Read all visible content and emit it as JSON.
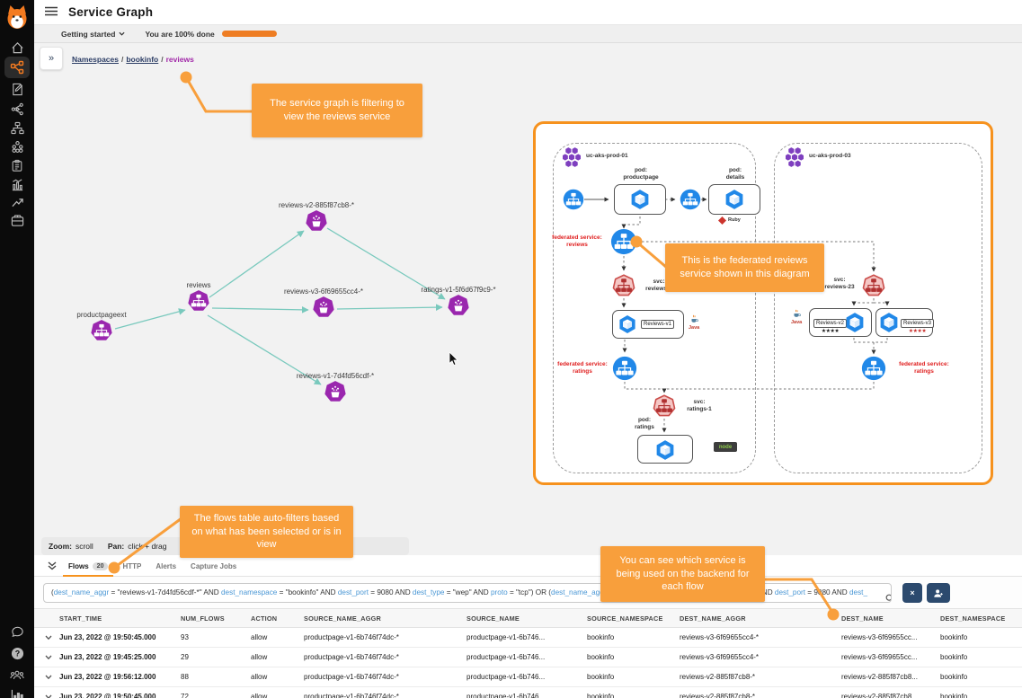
{
  "colors": {
    "accent_orange": "#F6921E",
    "callout_orange": "#F89F3C",
    "node_purple": "#9A27AE",
    "edge_teal": "#79C9BD",
    "diagram_blue": "#2188E8",
    "navy_button": "#2C4A6E",
    "federated_red": "#E02020"
  },
  "app": {
    "title": "Service Graph"
  },
  "onboarding": {
    "menu_label": "Getting started",
    "progress_label": "You are 100% done"
  },
  "breadcrumb": {
    "root": "Namespaces",
    "namespace": "bookinfo",
    "service": "reviews",
    "separator": "/"
  },
  "callouts": {
    "filter": "The service graph is filtering to view the reviews service",
    "federated": "This is the federated reviews service shown in this diagram",
    "flows": "The flows table auto-filters based on what has been selected or is in view",
    "backend": "You can see which service is being used on the backend for each flow"
  },
  "graph": {
    "nodes": [
      {
        "label": "productpageext",
        "kind": "service"
      },
      {
        "label": "reviews",
        "kind": "service"
      },
      {
        "label": "reviews-v2-885f87cb8-*",
        "kind": "replicaset"
      },
      {
        "label": "reviews-v3-6f69655cc4-*",
        "kind": "replicaset"
      },
      {
        "label": "ratings-v1-5f6d67f9c9-*",
        "kind": "replicaset"
      },
      {
        "label": "reviews-v1-7d4fd56cdf-*",
        "kind": "replicaset"
      }
    ],
    "help": {
      "zoom_key": "Zoom:",
      "zoom_val": "scroll",
      "pan_key": "Pan:",
      "pan_val": "click + drag",
      "expand_key": "Expand"
    }
  },
  "diagram": {
    "clusters": [
      {
        "name": "uc-aks-prod-01"
      },
      {
        "name": "uc-aks-prod-03"
      }
    ],
    "labels": {
      "pod_productpage": "pod:\nproductpage",
      "pod_details": "pod:\ndetails",
      "ruby": "Ruby",
      "fed_reviews": "federated service:\nreviews",
      "svc_reviews1": "svc:\nreviews-1",
      "reviews_v1": "Reviews-v1",
      "java": "Java",
      "fed_ratings": "federated service:\nratings",
      "svc_ratings1": "svc:\nratings-1",
      "pod_ratings": "pod:\nratings",
      "node": "node",
      "svc_reviews23": "svc:\nreviews-23",
      "reviews_v2": "Reviews-v2",
      "reviews_v3": "Reviews-v3",
      "stars": "★★★★"
    }
  },
  "flows_panel": {
    "tabs": [
      {
        "label": "Flows",
        "badge": "20",
        "active": true
      },
      {
        "label": "HTTP",
        "active": false
      },
      {
        "label": "Alerts",
        "active": false
      },
      {
        "label": "Capture Jobs",
        "active": false
      }
    ],
    "filter": {
      "segments_left": [
        {
          "type": "text",
          "text": "("
        },
        {
          "type": "key",
          "text": "dest_name_aggr"
        },
        {
          "type": "text",
          "text": " = \"reviews-v1-7d4fd56cdf-*\" AND "
        },
        {
          "type": "key",
          "text": "dest_namespace"
        },
        {
          "type": "text",
          "text": " = \"bookinfo\" AND "
        },
        {
          "type": "key",
          "text": "dest_port"
        },
        {
          "type": "text",
          "text": " = 9080 AND "
        },
        {
          "type": "key",
          "text": "dest_type"
        },
        {
          "type": "text",
          "text": " = \"wep\" AND "
        },
        {
          "type": "key",
          "text": "proto"
        },
        {
          "type": "text",
          "text": " = \"tcp\") OR ("
        },
        {
          "type": "key",
          "text": "dest_name_aggr"
        },
        {
          "type": "text",
          "text": " = \"r"
        }
      ],
      "segments_right": [
        {
          "type": "text",
          "text": "info\" AND "
        },
        {
          "type": "key",
          "text": "dest_port"
        },
        {
          "type": "text",
          "text": " = 9080 AND "
        },
        {
          "type": "key",
          "text": "dest_"
        }
      ]
    },
    "table": {
      "columns": [
        "START_TIME",
        "NUM_FLOWS",
        "ACTION",
        "SOURCE_NAME_AGGR",
        "SOURCE_NAME",
        "SOURCE_NAMESPACE",
        "DEST_NAME_AGGR",
        "DEST_NAME",
        "DEST_NAMESPACE"
      ],
      "rows": [
        [
          "Jun 23, 2022 @ 19:50:45.000",
          "93",
          "allow",
          "productpage-v1-6b746f74dc-*",
          "productpage-v1-6b746...",
          "bookinfo",
          "reviews-v3-6f69655cc4-*",
          "reviews-v3-6f69655cc...",
          "bookinfo"
        ],
        [
          "Jun 23, 2022 @ 19:45:25.000",
          "29",
          "allow",
          "productpage-v1-6b746f74dc-*",
          "productpage-v1-6b746...",
          "bookinfo",
          "reviews-v3-6f69655cc4-*",
          "reviews-v3-6f69655cc...",
          "bookinfo"
        ],
        [
          "Jun 23, 2022 @ 19:56:12.000",
          "88",
          "allow",
          "productpage-v1-6b746f74dc-*",
          "productpage-v1-6b746...",
          "bookinfo",
          "reviews-v2-885f87cb8-*",
          "reviews-v2-885f87cb8...",
          "bookinfo"
        ],
        [
          "Jun 23, 2022 @ 19:50:45.000",
          "72",
          "allow",
          "productpage-v1-6b746f74dc-*",
          "productpage-v1-6b746...",
          "bookinfo",
          "reviews-v2-885f87cb8-*",
          "reviews-v2-885f87cb8...",
          "bookinfo"
        ]
      ]
    }
  }
}
